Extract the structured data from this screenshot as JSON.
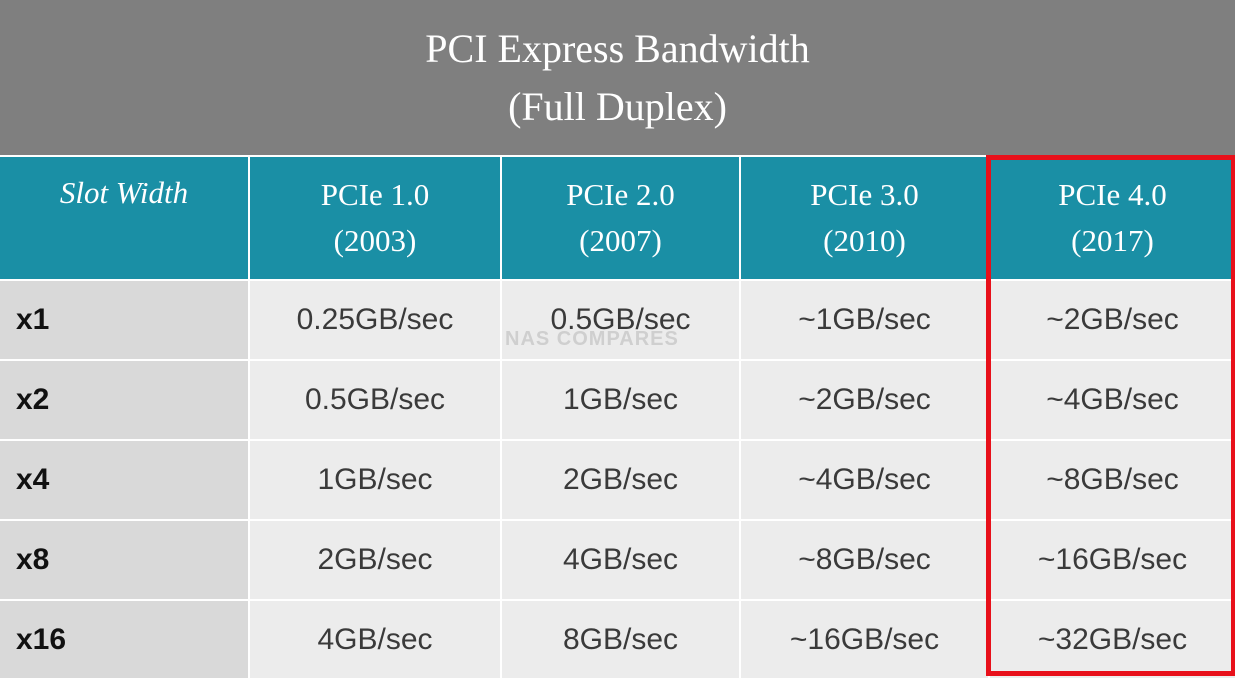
{
  "title": {
    "lines": [
      "PCI Express Bandwidth",
      "(Full Duplex)"
    ]
  },
  "table": {
    "header": [
      [
        "Slot Width"
      ],
      [
        "PCIe 1.0",
        "(2003)"
      ],
      [
        "PCIe 2.0",
        "(2007)"
      ],
      [
        "PCIe 3.0",
        "(2010)"
      ],
      [
        "PCIe 4.0",
        "(2017)"
      ]
    ],
    "rows": [
      [
        "x1",
        "0.25GB/sec",
        "0.5GB/sec",
        "~1GB/sec",
        "~2GB/sec"
      ],
      [
        "x2",
        "0.5GB/sec",
        "1GB/sec",
        "~2GB/sec",
        "~4GB/sec"
      ],
      [
        "x4",
        "1GB/sec",
        "2GB/sec",
        "~4GB/sec",
        "~8GB/sec"
      ],
      [
        "x8",
        "2GB/sec",
        "4GB/sec",
        "~8GB/sec",
        "~16GB/sec"
      ],
      [
        "x16",
        "4GB/sec",
        "8GB/sec",
        "~16GB/sec",
        "~32GB/sec"
      ]
    ]
  },
  "watermark": "NAS COMPARES"
}
